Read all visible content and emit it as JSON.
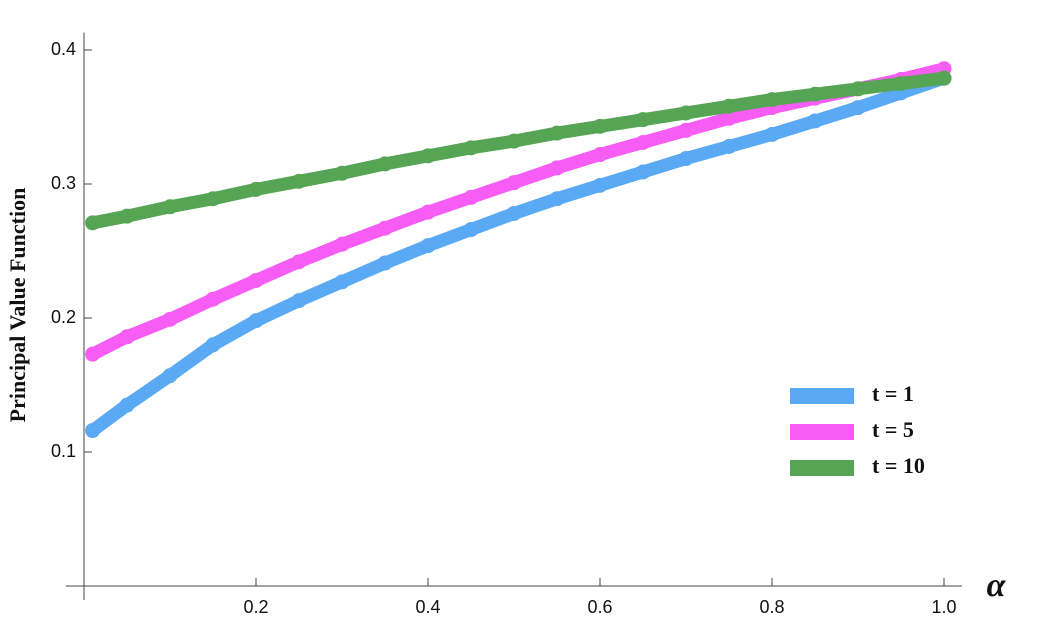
{
  "chart_data": {
    "type": "scatter",
    "y_label": "Principal Value Function",
    "x_label": "α",
    "x": [
      0.01,
      0.05,
      0.1,
      0.15,
      0.2,
      0.25,
      0.3,
      0.35,
      0.4,
      0.45,
      0.5,
      0.55,
      0.6,
      0.65,
      0.7,
      0.75,
      0.8,
      0.85,
      0.9,
      0.95,
      1.0
    ],
    "series": [
      {
        "name": "t = 1",
        "color": "#5aa9f5",
        "values": [
          0.116,
          0.135,
          0.157,
          0.18,
          0.198,
          0.213,
          0.227,
          0.241,
          0.254,
          0.266,
          0.278,
          0.289,
          0.299,
          0.309,
          0.319,
          0.328,
          0.337,
          0.347,
          0.357,
          0.368,
          0.379
        ]
      },
      {
        "name": "t = 5",
        "color": "#f75cf5",
        "values": [
          0.173,
          0.186,
          0.199,
          0.214,
          0.228,
          0.242,
          0.255,
          0.267,
          0.279,
          0.29,
          0.301,
          0.312,
          0.322,
          0.331,
          0.34,
          0.349,
          0.357,
          0.364,
          0.371,
          0.378,
          0.386
        ]
      },
      {
        "name": "t = 10",
        "color": "#55a555",
        "values": [
          0.271,
          0.276,
          0.283,
          0.289,
          0.296,
          0.302,
          0.308,
          0.315,
          0.321,
          0.327,
          0.332,
          0.338,
          0.343,
          0.348,
          0.353,
          0.358,
          0.363,
          0.367,
          0.371,
          0.375,
          0.379
        ]
      }
    ],
    "xlim": [
      0,
      1.02
    ],
    "ylim": [
      0,
      0.41
    ],
    "xticks": [
      0.2,
      0.4,
      0.6,
      0.8,
      {
        "value": 1,
        "label": "1.0"
      }
    ],
    "yticks": [
      0.1,
      0.2,
      0.3,
      0.4
    ],
    "legend": "lower-right"
  }
}
